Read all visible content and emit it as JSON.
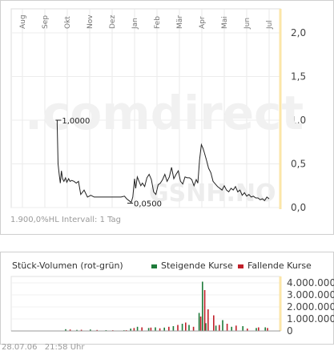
{
  "price_chart": {
    "watermark": ".comdirect",
    "symbol_watermark": "GSNH.NO",
    "info_line": "1.900,0%HL Intervall: 1 Tag"
  },
  "volume_chart": {
    "title": "Stück-Volumen (rot-grün)",
    "legend_up": "Steigende Kurse",
    "legend_down": "Fallende Kurse",
    "up_color": "#1e7b3a",
    "down_color": "#c0202a"
  },
  "footer": {
    "date": "28.07.06",
    "time": "21:58 Uhr"
  },
  "chart_data": [
    {
      "type": "line",
      "x_labels": [
        "Aug",
        "Sep",
        "Okt",
        "Nov",
        "Dez",
        "Jan",
        "Feb",
        "Mär",
        "Apr",
        "Mai",
        "Jun",
        "Jul"
      ],
      "y_ticks": [
        "2,0",
        "1,5",
        "1,0",
        "0,5",
        "0,0"
      ],
      "ylim": [
        0,
        2.0
      ],
      "annotations": [
        {
          "text": "1,0000",
          "month": 2.05,
          "value": 1.0
        },
        {
          "text": "0,0500",
          "month": 5.25,
          "value": 0.05
        }
      ],
      "series": [
        {
          "month": [
            2.05,
            2.05,
            2.09,
            2.14,
            2.19,
            2.24,
            2.29,
            2.35,
            2.42,
            2.48,
            2.56,
            2.62,
            2.7,
            2.8,
            2.9,
            3.0,
            3.1,
            3.25,
            3.4,
            3.55,
            3.7,
            3.85,
            4.0,
            4.15,
            4.3,
            4.45,
            4.6,
            4.75,
            4.9,
            5.05,
            5.15,
            5.25,
            5.35,
            5.42,
            5.5,
            5.55,
            5.62,
            5.7,
            5.78,
            5.85,
            5.95,
            6.05,
            6.15,
            6.25,
            6.35,
            6.45,
            6.55,
            6.65,
            6.75,
            6.85,
            6.95,
            7.05,
            7.15,
            7.25,
            7.35,
            7.45,
            7.55,
            7.65,
            7.75,
            7.85,
            7.95,
            8.05,
            8.15,
            8.25,
            8.32,
            8.4,
            8.48,
            8.55,
            8.62,
            8.7,
            8.8,
            8.9,
            9.0,
            9.1,
            9.2,
            9.3,
            9.4,
            9.5,
            9.6,
            9.7,
            9.8,
            9.9,
            10.0,
            10.1,
            10.2,
            10.3,
            10.4,
            10.5,
            10.6,
            10.7,
            10.8,
            10.9,
            11.0,
            11.1,
            11.2,
            11.3,
            11.4,
            11.5
          ],
          "values": [
            1.0,
            0.95,
            0.5,
            0.38,
            0.28,
            0.42,
            0.33,
            0.3,
            0.34,
            0.29,
            0.33,
            0.3,
            0.31,
            0.3,
            0.28,
            0.3,
            0.15,
            0.2,
            0.12,
            0.14,
            0.12,
            0.12,
            0.12,
            0.12,
            0.12,
            0.12,
            0.12,
            0.12,
            0.12,
            0.13,
            0.1,
            0.08,
            0.06,
            0.12,
            0.33,
            0.22,
            0.35,
            0.3,
            0.25,
            0.28,
            0.24,
            0.34,
            0.38,
            0.32,
            0.18,
            0.15,
            0.26,
            0.28,
            0.32,
            0.38,
            0.3,
            0.35,
            0.46,
            0.33,
            0.38,
            0.42,
            0.3,
            0.27,
            0.35,
            0.34,
            0.34,
            0.32,
            0.25,
            0.32,
            0.28,
            0.55,
            0.72,
            0.68,
            0.62,
            0.55,
            0.45,
            0.4,
            0.3,
            0.27,
            0.24,
            0.22,
            0.2,
            0.25,
            0.2,
            0.18,
            0.22,
            0.2,
            0.24,
            0.18,
            0.2,
            0.14,
            0.17,
            0.13,
            0.15,
            0.12,
            0.13,
            0.11,
            0.11,
            0.09,
            0.1,
            0.08,
            0.12,
            0.1
          ]
        }
      ]
    },
    {
      "type": "bar",
      "y_ticks": [
        "4.000.000",
        "3.000.000",
        "2.000.000",
        "1.000.000",
        "0"
      ],
      "ylim": [
        0,
        4000000
      ],
      "series": [
        {
          "name": "Steigende Kurse",
          "month": [
            2.4,
            2.9,
            3.5,
            4.2,
            5.0,
            5.3,
            5.6,
            6.1,
            6.4,
            6.8,
            7.2,
            7.6,
            7.9,
            8.35,
            8.5,
            8.65,
            9.1,
            9.4,
            9.8,
            10.3,
            10.9,
            11.3
          ],
          "values": [
            150000,
            90000,
            120000,
            70000,
            60000,
            200000,
            350000,
            250000,
            300000,
            280000,
            400000,
            600000,
            500000,
            1500000,
            4100000,
            650000,
            450000,
            900000,
            350000,
            400000,
            250000,
            300000
          ]
        },
        {
          "name": "Fallende Kurse",
          "month": [
            2.6,
            3.1,
            3.8,
            4.5,
            5.1,
            5.45,
            5.8,
            6.2,
            6.6,
            7.0,
            7.4,
            7.75,
            8.1,
            8.42,
            8.6,
            8.75,
            9.0,
            9.25,
            9.6,
            10.0,
            10.5,
            11.0,
            11.4
          ],
          "values": [
            120000,
            100000,
            80000,
            60000,
            70000,
            250000,
            300000,
            280000,
            220000,
            350000,
            500000,
            700000,
            350000,
            1200000,
            3400000,
            1800000,
            1300000,
            500000,
            600000,
            450000,
            200000,
            300000,
            250000
          ]
        }
      ]
    }
  ]
}
